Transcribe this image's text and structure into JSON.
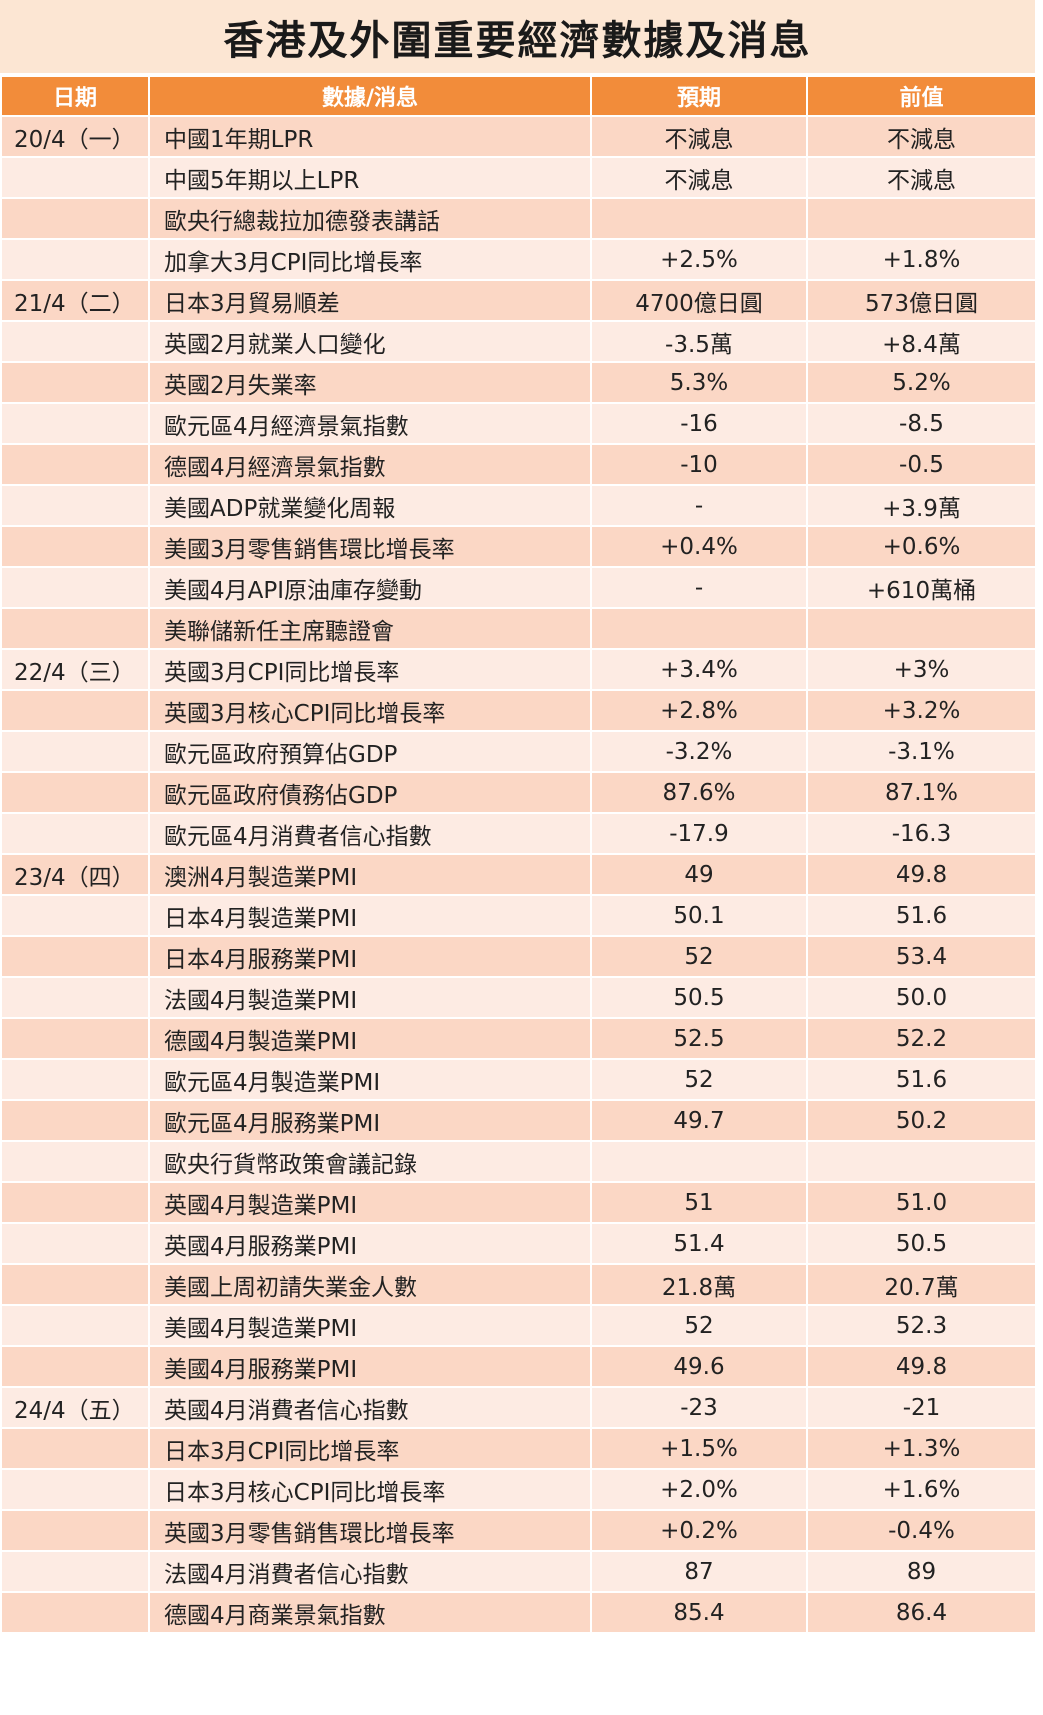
{
  "title": "香港及外圍重要經濟數據及消息",
  "headers": {
    "date": "日期",
    "item": "數據/消息",
    "expected": "預期",
    "previous": "前值"
  },
  "rows": [
    {
      "date": "20/4（一）",
      "item": "中國1年期LPR",
      "expected": "不減息",
      "previous": "不減息"
    },
    {
      "date": "",
      "item": "中國5年期以上LPR",
      "expected": "不減息",
      "previous": "不減息"
    },
    {
      "date": "",
      "item": "歐央行總裁拉加德發表講話",
      "expected": "",
      "previous": ""
    },
    {
      "date": "",
      "item": "加拿大3月CPI同比增長率",
      "expected": "+2.5%",
      "previous": "+1.8%"
    },
    {
      "date": "21/4（二）",
      "item": "日本3月貿易順差",
      "expected": "4700億日圓",
      "previous": "573億日圓"
    },
    {
      "date": "",
      "item": "英國2月就業人口變化",
      "expected": "-3.5萬",
      "previous": "+8.4萬"
    },
    {
      "date": "",
      "item": "英國2月失業率",
      "expected": "5.3%",
      "previous": "5.2%"
    },
    {
      "date": "",
      "item": "歐元區4月經濟景氣指數",
      "expected": "-16",
      "previous": "-8.5"
    },
    {
      "date": "",
      "item": "德國4月經濟景氣指數",
      "expected": "-10",
      "previous": "-0.5"
    },
    {
      "date": "",
      "item": "美國ADP就業變化周報",
      "expected": "-",
      "previous": "+3.9萬"
    },
    {
      "date": "",
      "item": "美國3月零售銷售環比增長率",
      "expected": "+0.4%",
      "previous": "+0.6%"
    },
    {
      "date": "",
      "item": "美國4月API原油庫存變動",
      "expected": "-",
      "previous": "+610萬桶"
    },
    {
      "date": "",
      "item": "美聯儲新任主席聽證會",
      "expected": "",
      "previous": ""
    },
    {
      "date": "22/4（三）",
      "item": "英國3月CPI同比增長率",
      "expected": "+3.4%",
      "previous": "+3%"
    },
    {
      "date": "",
      "item": "英國3月核心CPI同比增長率",
      "expected": "+2.8%",
      "previous": "+3.2%"
    },
    {
      "date": "",
      "item": "歐元區政府預算佔GDP",
      "expected": "-3.2%",
      "previous": "-3.1%"
    },
    {
      "date": "",
      "item": "歐元區政府債務佔GDP",
      "expected": "87.6%",
      "previous": "87.1%"
    },
    {
      "date": "",
      "item": "歐元區4月消費者信心指數",
      "expected": "-17.9",
      "previous": "-16.3"
    },
    {
      "date": "23/4（四）",
      "item": "澳洲4月製造業PMI",
      "expected": "49",
      "previous": "49.8"
    },
    {
      "date": "",
      "item": "日本4月製造業PMI",
      "expected": "50.1",
      "previous": "51.6"
    },
    {
      "date": "",
      "item": "日本4月服務業PMI",
      "expected": "52",
      "previous": "53.4"
    },
    {
      "date": "",
      "item": "法國4月製造業PMI",
      "expected": "50.5",
      "previous": "50.0"
    },
    {
      "date": "",
      "item": "德國4月製造業PMI",
      "expected": "52.5",
      "previous": "52.2"
    },
    {
      "date": "",
      "item": "歐元區4月製造業PMI",
      "expected": "52",
      "previous": "51.6"
    },
    {
      "date": "",
      "item": "歐元區4月服務業PMI",
      "expected": "49.7",
      "previous": "50.2"
    },
    {
      "date": "",
      "item": "歐央行貨幣政策會議記錄",
      "expected": "",
      "previous": ""
    },
    {
      "date": "",
      "item": "英國4月製造業PMI",
      "expected": "51",
      "previous": "51.0"
    },
    {
      "date": "",
      "item": "英國4月服務業PMI",
      "expected": "51.4",
      "previous": "50.5"
    },
    {
      "date": "",
      "item": "美國上周初請失業金人數",
      "expected": "21.8萬",
      "previous": "20.7萬"
    },
    {
      "date": "",
      "item": "美國4月製造業PMI",
      "expected": "52",
      "previous": "52.3"
    },
    {
      "date": "",
      "item": "美國4月服務業PMI",
      "expected": "49.6",
      "previous": "49.8"
    },
    {
      "date": "24/4（五）",
      "item": "英國4月消費者信心指數",
      "expected": "-23",
      "previous": "-21"
    },
    {
      "date": "",
      "item": "日本3月CPI同比增長率",
      "expected": "+1.5%",
      "previous": "+1.3%"
    },
    {
      "date": "",
      "item": "日本3月核心CPI同比增長率",
      "expected": "+2.0%",
      "previous": "+1.6%"
    },
    {
      "date": "",
      "item": "英國3月零售銷售環比增長率",
      "expected": "+0.2%",
      "previous": "-0.4%"
    },
    {
      "date": "",
      "item": "法國4月消費者信心指數",
      "expected": "87",
      "previous": "89"
    },
    {
      "date": "",
      "item": "德國4月商業景氣指數",
      "expected": "85.4",
      "previous": "86.4"
    }
  ]
}
